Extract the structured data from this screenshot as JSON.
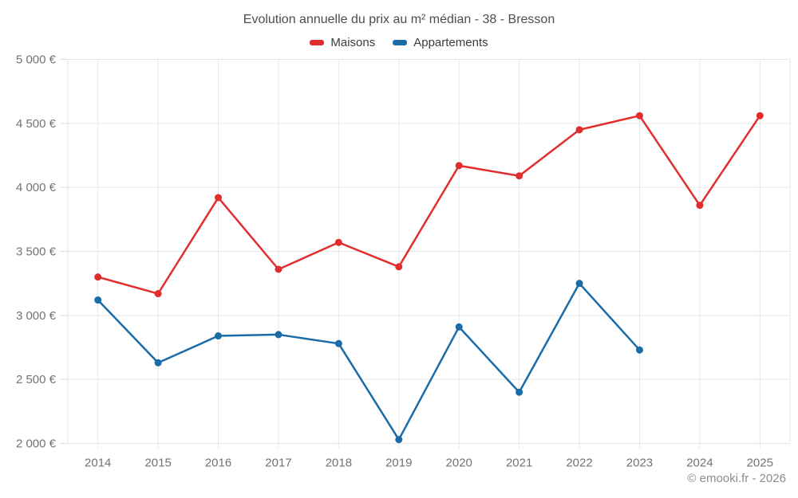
{
  "header": {
    "title": "Evolution annuelle du prix au m² médian - 38 - Bresson"
  },
  "legend": [
    {
      "label": "Maisons",
      "color": "#e12d2d"
    },
    {
      "label": "Appartements",
      "color": "#1a6ca8"
    }
  ],
  "footer": {
    "credit": "© emooki.fr - 2026"
  },
  "colors": {
    "maisons": "#e12d2d",
    "appartements": "#1a6ca8",
    "gridline": "#e6e6e6",
    "tick": "#dcdcdc",
    "axis_text": "#737373"
  },
  "chart_data": {
    "type": "line",
    "title": "Evolution annuelle du prix au m² médian - 38 - Bresson",
    "xlabel": "",
    "ylabel": "",
    "categories": [
      "2014",
      "2015",
      "2016",
      "2017",
      "2018",
      "2019",
      "2020",
      "2021",
      "2022",
      "2023",
      "2024",
      "2025"
    ],
    "series": [
      {
        "name": "Maisons",
        "color": "#e12d2d",
        "values": [
          3300,
          3170,
          3920,
          3360,
          3570,
          3380,
          4170,
          4090,
          4450,
          4560,
          3860,
          4560
        ]
      },
      {
        "name": "Appartements",
        "color": "#1a6ca8",
        "values": [
          3120,
          2630,
          2840,
          2850,
          2780,
          2030,
          2910,
          2400,
          3250,
          2730,
          null,
          null
        ]
      }
    ],
    "ylim": [
      2000,
      5000
    ],
    "yticks": [
      {
        "value": 2000,
        "label": "2 000 €"
      },
      {
        "value": 2500,
        "label": "2 500 €"
      },
      {
        "value": 3000,
        "label": "3 000 €"
      },
      {
        "value": 3500,
        "label": "3 500 €"
      },
      {
        "value": 4000,
        "label": "4 000 €"
      },
      {
        "value": 4500,
        "label": "4 500 €"
      },
      {
        "value": 5000,
        "label": "5 000 €"
      }
    ],
    "grid": true,
    "legend_position": "top",
    "marker": "circle"
  }
}
